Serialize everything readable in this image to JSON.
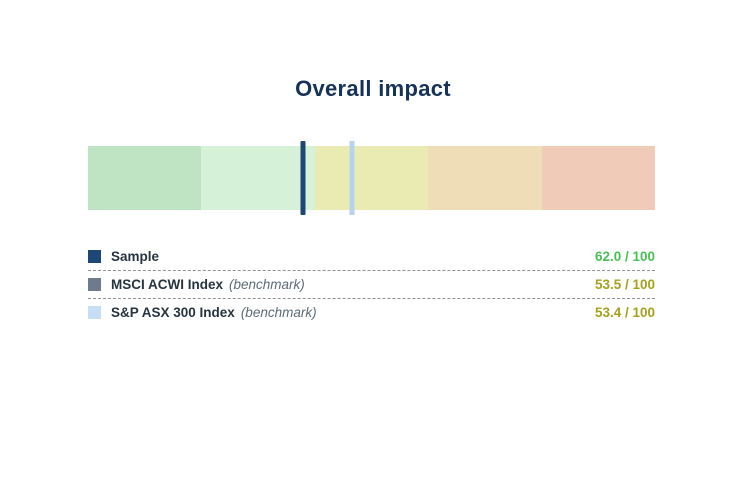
{
  "title_color": "#16325a",
  "legend": {
    "dashed_divider_color": "#909090"
  },
  "chart_data": {
    "type": "bar",
    "subtype": "horizontal bullet gauge: colored scale bands with vertical score markers",
    "title": "Overall impact",
    "scale": {
      "min": 0,
      "max": 100,
      "left_value": 100,
      "right_value": 0,
      "ticks_visible": false
    },
    "bands": [
      {
        "approx_range": "100-80",
        "color": "#bee4c4"
      },
      {
        "approx_range": "80-60",
        "color": "#d5f1d8"
      },
      {
        "approx_range": "60-40",
        "color": "#eaebb2"
      },
      {
        "approx_range": "40-20",
        "color": "#eeddb6"
      },
      {
        "approx_range": "20-0",
        "color": "#f0cbb8"
      }
    ],
    "series": [
      {
        "key": "sample",
        "name": "Sample",
        "qualifier": "",
        "value": 62.0,
        "value_display": "62.0 / 100",
        "marker_color": "#1c4777",
        "swatch_color": "#1c4777",
        "value_color": "#45c153"
      },
      {
        "key": "msci",
        "name": "MSCI ACWI Index",
        "qualifier": "(benchmark)",
        "value": 53.5,
        "value_display": "53.5 / 100",
        "marker_color": "#6d7b8a",
        "swatch_color": "#6d7b8a",
        "value_color": "#a5a11c"
      },
      {
        "key": "asx",
        "name": "S&P ASX 300 Index",
        "qualifier": "(benchmark)",
        "value": 53.4,
        "value_display": "53.4 / 100",
        "marker_color": "#b9d2f0",
        "swatch_color": "#c7dcf5",
        "value_color": "#a5a11c"
      }
    ],
    "legend_position": "below",
    "grid": false
  }
}
